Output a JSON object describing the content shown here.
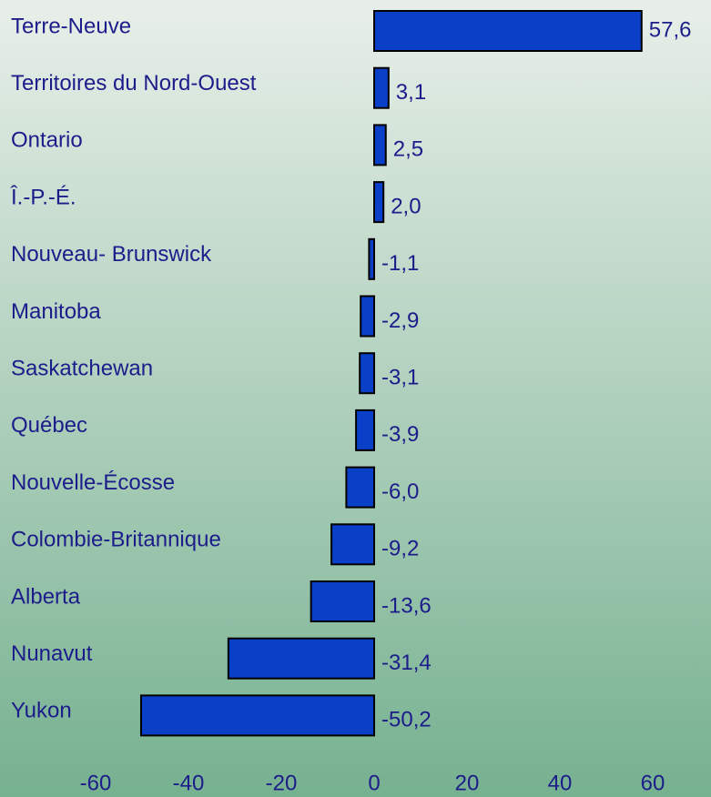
{
  "chart_data": {
    "type": "bar",
    "orientation": "horizontal",
    "categories": [
      "Terre-Neuve",
      "Territoires du Nord-Ouest",
      "Ontario",
      "Î.-P.-É.",
      "Nouveau- Brunswick",
      "Manitoba",
      "Saskatchewan",
      "Québec",
      "Nouvelle-Écosse",
      "Colombie-Britannique",
      "Alberta",
      "Nunavut",
      "Yukon"
    ],
    "values": [
      57.6,
      3.1,
      2.5,
      2.0,
      -1.1,
      -2.9,
      -3.1,
      -3.9,
      -6.0,
      -9.2,
      -13.6,
      -31.4,
      -50.2
    ],
    "value_labels": [
      "57,6",
      "3,1",
      "2,5",
      "2,0",
      "-1,1",
      "-2,9",
      "-3,1",
      "-3,9",
      "-6,0",
      "-9,2",
      "-13,6",
      "-31,4",
      "-50,2"
    ],
    "color": "#0a3fc8",
    "xlim": [
      -60,
      60
    ],
    "xticks": [
      -60,
      -40,
      -20,
      0,
      20,
      40,
      60
    ]
  }
}
